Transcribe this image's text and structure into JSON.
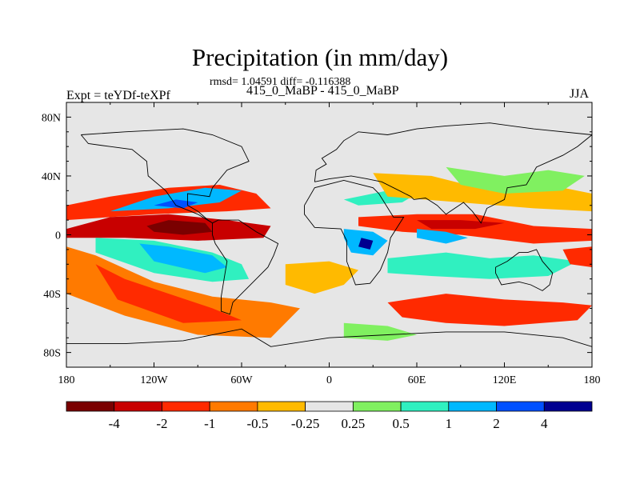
{
  "chart_data": {
    "type": "heatmap",
    "title": "Precipitation (in mm/day)",
    "stats_text": "rmsd= 1.04591 diff= -0.116388",
    "subtitle": "415_0_MaBP - 415_0_MaBP",
    "left_string": "Expt = teYDf-teXPf",
    "right_string": "JJA",
    "x_range": [
      -180,
      180
    ],
    "y_range": [
      -90,
      90
    ],
    "x_ticks": [
      {
        "value": -180,
        "label": "180"
      },
      {
        "value": -120,
        "label": "120W"
      },
      {
        "value": -60,
        "label": "60W"
      },
      {
        "value": 0,
        "label": "0"
      },
      {
        "value": 60,
        "label": "60E"
      },
      {
        "value": 120,
        "label": "120E"
      },
      {
        "value": 180,
        "label": "180"
      }
    ],
    "y_ticks": [
      {
        "value": 80,
        "label": "80N"
      },
      {
        "value": 40,
        "label": "40N"
      },
      {
        "value": 0,
        "label": "0"
      },
      {
        "value": -40,
        "label": "40S"
      },
      {
        "value": -80,
        "label": "80S"
      }
    ],
    "levels": [
      -4,
      -2,
      -1,
      -0.5,
      -0.25,
      0.25,
      0.5,
      1,
      2,
      4
    ],
    "level_labels": [
      "-4",
      "-2",
      "-1",
      "-0.5",
      "-0.25",
      "0.25",
      "0.5",
      "1",
      "2",
      "4"
    ],
    "colors": [
      "#7a0000",
      "#c80000",
      "#ff2a00",
      "#ff7a00",
      "#ffba00",
      "#e6e6e6",
      "#80f060",
      "#30f0c0",
      "#00b8ff",
      "#0050ff",
      "#000090"
    ],
    "background_color": "#e6e6e6",
    "regions": [
      {
        "name": "north pacific wet band",
        "value": -1.5,
        "points": [
          [
            -180,
            20
          ],
          [
            -150,
            26
          ],
          [
            -110,
            32
          ],
          [
            -75,
            34
          ],
          [
            -50,
            28
          ],
          [
            -40,
            18
          ],
          [
            -70,
            16
          ],
          [
            -120,
            14
          ],
          [
            -180,
            10
          ]
        ]
      },
      {
        "name": "pacific itcz dry core",
        "value": -3,
        "points": [
          [
            -180,
            4
          ],
          [
            -150,
            12
          ],
          [
            -110,
            14
          ],
          [
            -70,
            10
          ],
          [
            -40,
            6
          ],
          [
            -45,
            -2
          ],
          [
            -90,
            -4
          ],
          [
            -140,
            -2
          ],
          [
            -180,
            -2
          ]
        ]
      },
      {
        "name": "pacific itcz strongest",
        "value": -5,
        "points": [
          [
            -125,
            6
          ],
          [
            -110,
            10
          ],
          [
            -85,
            8
          ],
          [
            -80,
            2
          ],
          [
            -100,
            0
          ],
          [
            -120,
            2
          ]
        ]
      },
      {
        "name": "north pacific blue band",
        "value": 1.5,
        "points": [
          [
            -150,
            16
          ],
          [
            -120,
            26
          ],
          [
            -85,
            32
          ],
          [
            -60,
            30
          ],
          [
            -75,
            22
          ],
          [
            -110,
            18
          ]
        ]
      },
      {
        "name": "north pacific blue core",
        "value": 3,
        "points": [
          [
            -120,
            20
          ],
          [
            -105,
            24
          ],
          [
            -90,
            22
          ],
          [
            -100,
            18
          ]
        ]
      },
      {
        "name": "south pacific teal band",
        "value": 0.75,
        "points": [
          [
            -160,
            -2
          ],
          [
            -120,
            -4
          ],
          [
            -80,
            -12
          ],
          [
            -60,
            -20
          ],
          [
            -55,
            -30
          ],
          [
            -80,
            -32
          ],
          [
            -120,
            -26
          ],
          [
            -160,
            -12
          ]
        ]
      },
      {
        "name": "south pacific blue band",
        "value": 1.5,
        "points": [
          [
            -130,
            -6
          ],
          [
            -110,
            -8
          ],
          [
            -80,
            -14
          ],
          [
            -70,
            -22
          ],
          [
            -85,
            -26
          ],
          [
            -120,
            -18
          ]
        ]
      },
      {
        "name": "south hemisphere orange band",
        "value": -0.7,
        "points": [
          [
            -180,
            -8
          ],
          [
            -160,
            -14
          ],
          [
            -120,
            -32
          ],
          [
            -80,
            -42
          ],
          [
            -40,
            -46
          ],
          [
            -20,
            -50
          ],
          [
            -40,
            -70
          ],
          [
            -90,
            -68
          ],
          [
            -140,
            -55
          ],
          [
            -180,
            -40
          ]
        ]
      },
      {
        "name": "south hemisphere red core",
        "value": -1.5,
        "points": [
          [
            -160,
            -20
          ],
          [
            -140,
            -30
          ],
          [
            -110,
            -40
          ],
          [
            -80,
            -50
          ],
          [
            -60,
            -58
          ],
          [
            -100,
            -60
          ],
          [
            -145,
            -44
          ]
        ]
      },
      {
        "name": "indian ocean dry band",
        "value": -1.5,
        "points": [
          [
            20,
            12
          ],
          [
            60,
            14
          ],
          [
            100,
            14
          ],
          [
            140,
            6
          ],
          [
            180,
            4
          ],
          [
            180,
            -4
          ],
          [
            140,
            -6
          ],
          [
            90,
            0
          ],
          [
            50,
            2
          ],
          [
            20,
            6
          ]
        ]
      },
      {
        "name": "indian ocean dry core",
        "value": -3,
        "points": [
          [
            60,
            10
          ],
          [
            90,
            10
          ],
          [
            120,
            8
          ],
          [
            100,
            4
          ],
          [
            70,
            4
          ]
        ]
      },
      {
        "name": "africa wet spot",
        "value": 1.5,
        "points": [
          [
            10,
            4
          ],
          [
            30,
            2
          ],
          [
            40,
            -4
          ],
          [
            30,
            -14
          ],
          [
            15,
            -12
          ],
          [
            10,
            -2
          ]
        ]
      },
      {
        "name": "africa wet core",
        "value": 4.5,
        "points": [
          [
            22,
            -2
          ],
          [
            30,
            -4
          ],
          [
            28,
            -10
          ],
          [
            20,
            -8
          ]
        ]
      },
      {
        "name": "north atlantic teal",
        "value": 0.75,
        "points": [
          [
            10,
            24
          ],
          [
            40,
            30
          ],
          [
            60,
            28
          ],
          [
            50,
            22
          ],
          [
            20,
            20
          ]
        ]
      },
      {
        "name": "asia orange band",
        "value": -0.4,
        "points": [
          [
            30,
            42
          ],
          [
            70,
            40
          ],
          [
            110,
            30
          ],
          [
            150,
            34
          ],
          [
            180,
            28
          ],
          [
            180,
            16
          ],
          [
            140,
            18
          ],
          [
            90,
            22
          ],
          [
            40,
            26
          ]
        ]
      },
      {
        "name": "north pacific green band",
        "value": 0.4,
        "points": [
          [
            80,
            46
          ],
          [
            120,
            40
          ],
          [
            150,
            44
          ],
          [
            175,
            40
          ],
          [
            160,
            30
          ],
          [
            120,
            28
          ],
          [
            90,
            34
          ]
        ]
      },
      {
        "name": "south indian teal",
        "value": 0.75,
        "points": [
          [
            40,
            -16
          ],
          [
            80,
            -12
          ],
          [
            110,
            -16
          ],
          [
            140,
            -14
          ],
          [
            170,
            -18
          ],
          [
            150,
            -28
          ],
          [
            110,
            -30
          ],
          [
            70,
            -28
          ],
          [
            40,
            -26
          ]
        ]
      },
      {
        "name": "south indian red band",
        "value": -1.5,
        "points": [
          [
            40,
            -46
          ],
          [
            80,
            -40
          ],
          [
            120,
            -44
          ],
          [
            160,
            -46
          ],
          [
            180,
            -48
          ],
          [
            170,
            -58
          ],
          [
            120,
            -62
          ],
          [
            80,
            -60
          ],
          [
            50,
            -56
          ]
        ]
      },
      {
        "name": "south atlantic orange",
        "value": -0.4,
        "points": [
          [
            -30,
            -20
          ],
          [
            0,
            -18
          ],
          [
            20,
            -24
          ],
          [
            10,
            -34
          ],
          [
            -10,
            -40
          ],
          [
            -30,
            -34
          ]
        ]
      },
      {
        "name": "southern ocean green",
        "value": 0.4,
        "points": [
          [
            10,
            -60
          ],
          [
            40,
            -62
          ],
          [
            60,
            -68
          ],
          [
            40,
            -72
          ],
          [
            10,
            -70
          ]
        ]
      },
      {
        "name": "eastern pacific red",
        "value": -1.5,
        "points": [
          [
            160,
            -10
          ],
          [
            180,
            -8
          ],
          [
            180,
            -22
          ],
          [
            165,
            -20
          ]
        ]
      },
      {
        "name": "north indian blue",
        "value": 1.5,
        "points": [
          [
            60,
            4
          ],
          [
            80,
            2
          ],
          [
            95,
            -2
          ],
          [
            80,
            -6
          ],
          [
            60,
            -2
          ]
        ]
      }
    ],
    "coastlines": [
      {
        "name": "north america",
        "points": [
          [
            -170,
            68
          ],
          [
            -140,
            70
          ],
          [
            -100,
            72
          ],
          [
            -80,
            68
          ],
          [
            -60,
            60
          ],
          [
            -55,
            50
          ],
          [
            -70,
            44
          ],
          [
            -80,
            32
          ],
          [
            -82,
            26
          ],
          [
            -97,
            28
          ],
          [
            -97,
            20
          ],
          [
            -90,
            16
          ],
          [
            -83,
            10
          ],
          [
            -80,
            8
          ],
          [
            -90,
            14
          ],
          [
            -105,
            20
          ],
          [
            -112,
            30
          ],
          [
            -124,
            40
          ],
          [
            -125,
            50
          ],
          [
            -135,
            58
          ],
          [
            -150,
            60
          ],
          [
            -165,
            62
          ],
          [
            -170,
            68
          ]
        ]
      },
      {
        "name": "south america",
        "points": [
          [
            -80,
            8
          ],
          [
            -76,
            10
          ],
          [
            -62,
            10
          ],
          [
            -50,
            2
          ],
          [
            -35,
            -6
          ],
          [
            -38,
            -14
          ],
          [
            -42,
            -22
          ],
          [
            -50,
            -30
          ],
          [
            -58,
            -38
          ],
          [
            -66,
            -46
          ],
          [
            -68,
            -54
          ],
          [
            -74,
            -52
          ],
          [
            -74,
            -42
          ],
          [
            -72,
            -30
          ],
          [
            -70,
            -18
          ],
          [
            -78,
            -6
          ],
          [
            -80,
            0
          ],
          [
            -80,
            8
          ]
        ]
      },
      {
        "name": "africa",
        "points": [
          [
            -17,
            20
          ],
          [
            -10,
            32
          ],
          [
            10,
            37
          ],
          [
            30,
            32
          ],
          [
            34,
            28
          ],
          [
            44,
            12
          ],
          [
            51,
            12
          ],
          [
            42,
            -2
          ],
          [
            40,
            -12
          ],
          [
            35,
            -24
          ],
          [
            28,
            -33
          ],
          [
            18,
            -34
          ],
          [
            12,
            -18
          ],
          [
            12,
            -4
          ],
          [
            8,
            4
          ],
          [
            -10,
            5
          ],
          [
            -17,
            14
          ],
          [
            -17,
            20
          ]
        ]
      },
      {
        "name": "eurasia",
        "points": [
          [
            -10,
            36
          ],
          [
            -9,
            44
          ],
          [
            -2,
            48
          ],
          [
            -5,
            52
          ],
          [
            5,
            58
          ],
          [
            10,
            64
          ],
          [
            20,
            70
          ],
          [
            40,
            68
          ],
          [
            60,
            72
          ],
          [
            80,
            74
          ],
          [
            110,
            76
          ],
          [
            140,
            72
          ],
          [
            180,
            68
          ],
          [
            170,
            60
          ],
          [
            160,
            54
          ],
          [
            142,
            46
          ],
          [
            135,
            34
          ],
          [
            122,
            32
          ],
          [
            120,
            24
          ],
          [
            108,
            18
          ],
          [
            104,
            8
          ],
          [
            98,
            16
          ],
          [
            92,
            22
          ],
          [
            80,
            14
          ],
          [
            74,
            20
          ],
          [
            66,
            25
          ],
          [
            58,
            24
          ],
          [
            56,
            26
          ],
          [
            48,
            30
          ],
          [
            36,
            36
          ],
          [
            26,
            38
          ],
          [
            15,
            40
          ],
          [
            0,
            38
          ],
          [
            -10,
            36
          ]
        ]
      },
      {
        "name": "australia",
        "points": [
          [
            114,
            -22
          ],
          [
            122,
            -18
          ],
          [
            130,
            -12
          ],
          [
            136,
            -12
          ],
          [
            142,
            -10
          ],
          [
            146,
            -18
          ],
          [
            153,
            -26
          ],
          [
            151,
            -34
          ],
          [
            146,
            -38
          ],
          [
            138,
            -34
          ],
          [
            130,
            -32
          ],
          [
            118,
            -34
          ],
          [
            114,
            -26
          ],
          [
            114,
            -22
          ]
        ]
      },
      {
        "name": "antarctica",
        "points": [
          [
            -180,
            -74
          ],
          [
            -140,
            -74
          ],
          [
            -100,
            -72
          ],
          [
            -60,
            -64
          ],
          [
            -40,
            -76
          ],
          [
            0,
            -70
          ],
          [
            40,
            -68
          ],
          [
            80,
            -66
          ],
          [
            120,
            -66
          ],
          [
            160,
            -70
          ],
          [
            180,
            -76
          ]
        ]
      }
    ]
  }
}
